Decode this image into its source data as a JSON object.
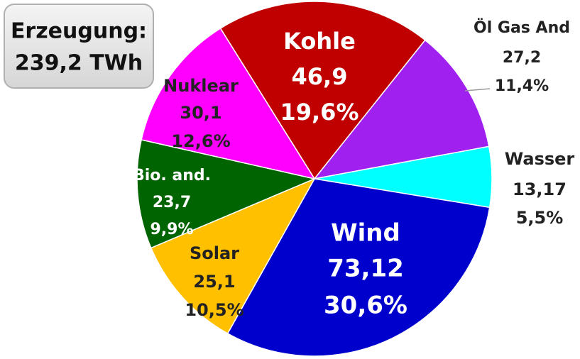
{
  "chart_data": {
    "type": "pie",
    "annotation": [
      "Erzeugung:",
      "239,2 TWh"
    ],
    "categories": [
      "Kohle",
      "Öl Gas And",
      "Wasser",
      "Wind",
      "Solar",
      "Bio. and.",
      "Nuklear"
    ],
    "values": [
      46.9,
      27.2,
      13.17,
      73.12,
      25.1,
      23.7,
      30.1
    ],
    "value_labels": [
      "46,9",
      "27,2",
      "13,17",
      "73,12",
      "25,1",
      "23,7",
      "30,1"
    ],
    "percentages": [
      19.6,
      11.4,
      5.5,
      30.6,
      10.5,
      9.9,
      12.6
    ],
    "percentage_labels": [
      "19,6%",
      "11,4%",
      "5,5%",
      "30,6%",
      "10,5%",
      "9,9%",
      "12,6%"
    ],
    "colors": [
      "#c00000",
      "#a020f0",
      "#00ffff",
      "#0000cc",
      "#ffc000",
      "#006400",
      "#ff00ff"
    ]
  }
}
